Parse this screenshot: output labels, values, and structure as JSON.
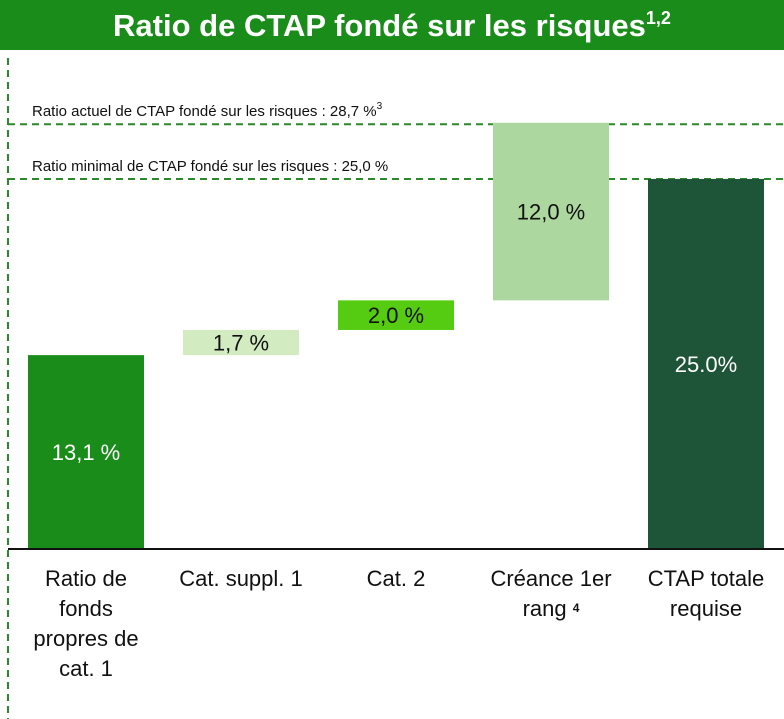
{
  "chart_data": {
    "type": "waterfall",
    "title": "Ratio de CTAP fondé sur les risques",
    "title_footnote": "1,2",
    "categories": [
      "Ratio de fonds propres de cat. 1",
      "Cat. suppl. 1",
      "Cat. 2",
      "Créance 1er rang",
      "CTAP totale requise"
    ],
    "category_footnotes": [
      null,
      null,
      null,
      "4",
      null
    ],
    "values": [
      13.1,
      1.7,
      2.0,
      12.0,
      25.0
    ],
    "value_labels": [
      "13,1 %",
      "1,7 %",
      "2,0 %",
      "12,0 %",
      "25.0%"
    ],
    "is_total": [
      false,
      false,
      false,
      false,
      true
    ],
    "colors": [
      "#1a8c1a",
      "#d3ebc1",
      "#55cc11",
      "#acd8a0",
      "#1e5438"
    ],
    "label_colors": [
      "#ffffff",
      "#111111",
      "#111111",
      "#111111",
      "#ffffff"
    ],
    "reference_lines": [
      {
        "label": "Ratio actuel de CTAP fondé sur les risques : 28,7 %",
        "footnote": "3",
        "value": 28.7
      },
      {
        "label": "Ratio minimal de CTAP fondé sur les risques : 25,0 %",
        "value": 25.0
      }
    ],
    "reference_color": "#2a8a2a"
  }
}
